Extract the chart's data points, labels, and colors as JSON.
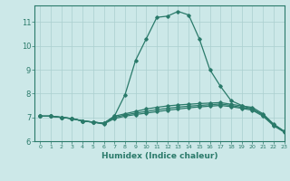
{
  "xlabel": "Humidex (Indice chaleur)",
  "bg_color": "#cce8e8",
  "grid_color": "#aacfcf",
  "line_color": "#2a7a6a",
  "xlim": [
    -0.5,
    23
  ],
  "ylim": [
    6.0,
    11.7
  ],
  "yticks": [
    6,
    7,
    8,
    9,
    10,
    11
  ],
  "xticks": [
    0,
    1,
    2,
    3,
    4,
    5,
    6,
    7,
    8,
    9,
    10,
    11,
    12,
    13,
    14,
    15,
    16,
    17,
    18,
    19,
    20,
    21,
    22,
    23
  ],
  "curves": [
    {
      "x": [
        0,
        1,
        2,
        3,
        4,
        5,
        6,
        7,
        8,
        9,
        10,
        11,
        12,
        13,
        14,
        15,
        16,
        17,
        18,
        19,
        20,
        21,
        22,
        23
      ],
      "y": [
        7.05,
        7.05,
        7.0,
        6.95,
        6.85,
        6.8,
        6.75,
        7.05,
        7.95,
        9.4,
        10.3,
        11.2,
        11.25,
        11.45,
        11.3,
        10.3,
        9.0,
        8.3,
        7.7,
        7.5,
        7.35,
        7.1,
        6.7,
        6.4
      ]
    },
    {
      "x": [
        0,
        1,
        2,
        3,
        4,
        5,
        6,
        7,
        8,
        9,
        10,
        11,
        12,
        13,
        14,
        15,
        16,
        17,
        18,
        19,
        20,
        21,
        22,
        23
      ],
      "y": [
        7.05,
        7.05,
        7.0,
        6.95,
        6.85,
        6.8,
        6.75,
        7.05,
        7.15,
        7.25,
        7.35,
        7.42,
        7.48,
        7.52,
        7.55,
        7.58,
        7.6,
        7.62,
        7.55,
        7.48,
        7.42,
        7.15,
        6.72,
        6.42
      ]
    },
    {
      "x": [
        0,
        1,
        2,
        3,
        4,
        5,
        6,
        7,
        8,
        9,
        10,
        11,
        12,
        13,
        14,
        15,
        16,
        17,
        18,
        19,
        20,
        21,
        22,
        23
      ],
      "y": [
        7.05,
        7.05,
        7.0,
        6.95,
        6.85,
        6.8,
        6.75,
        7.0,
        7.1,
        7.18,
        7.25,
        7.32,
        7.38,
        7.43,
        7.47,
        7.5,
        7.53,
        7.56,
        7.5,
        7.42,
        7.35,
        7.1,
        6.68,
        6.4
      ]
    },
    {
      "x": [
        0,
        1,
        2,
        3,
        4,
        5,
        6,
        7,
        8,
        9,
        10,
        11,
        12,
        13,
        14,
        15,
        16,
        17,
        18,
        19,
        20,
        21,
        22,
        23
      ],
      "y": [
        7.05,
        7.05,
        7.0,
        6.95,
        6.85,
        6.8,
        6.72,
        6.95,
        7.05,
        7.12,
        7.18,
        7.24,
        7.3,
        7.35,
        7.4,
        7.44,
        7.47,
        7.5,
        7.45,
        7.38,
        7.3,
        7.05,
        6.65,
        6.38
      ]
    }
  ]
}
